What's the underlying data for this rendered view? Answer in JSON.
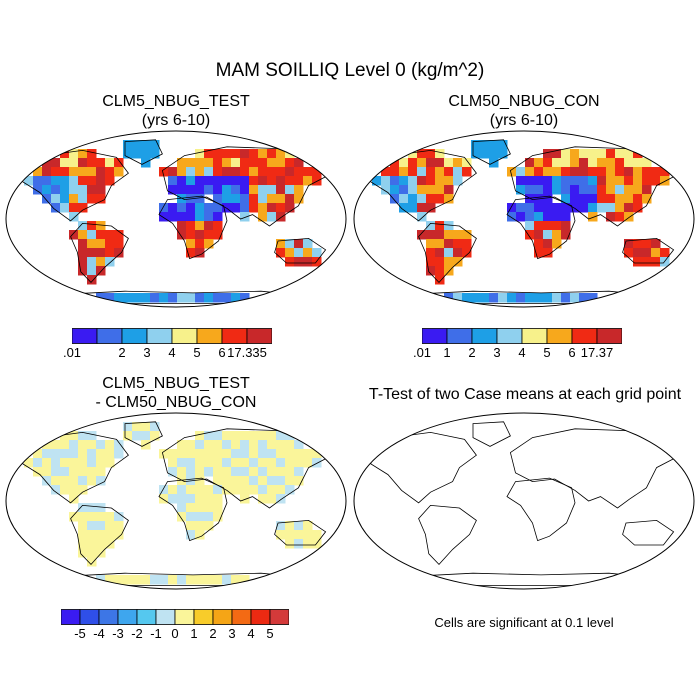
{
  "figure_title": "MAM SOILLIQ Level 0 (kg/m^2)",
  "colors": {
    "abs_palette": [
      "#3a1bf2",
      "#3f6ee8",
      "#1e9fe6",
      "#8fd0ee",
      "#f7f18b",
      "#f7a81c",
      "#f02a14",
      "#c8282a"
    ],
    "diff_palette": [
      "#3a1bf2",
      "#2f4fe8",
      "#3d76e6",
      "#3ea6ee",
      "#55c8ef",
      "#bfe3f2",
      "#faf59a",
      "#f8cc2a",
      "#f5a516",
      "#f36a14",
      "#ec2a12",
      "#d43a3a"
    ]
  },
  "panels": [
    {
      "title_line1": "CLM5_NBUG_TEST",
      "title_line2": "(yrs 6-10)",
      "colorbar_labels": [
        ".01",
        "2",
        "3",
        "4",
        "5",
        "6",
        "17.335"
      ]
    },
    {
      "title_line1": "CLM50_NBUG_CON",
      "title_line2": "(yrs 6-10)",
      "colorbar_labels": [
        ".01",
        "1",
        "2",
        "3",
        "4",
        "5",
        "6",
        "17.37"
      ]
    },
    {
      "title_line1": "CLM5_NBUG_TEST",
      "title_line2": "- CLM50_NBUG_CON",
      "colorbar_labels": [
        "-5",
        "-4",
        "-3",
        "-2",
        "-1",
        "0",
        "1",
        "2",
        "3",
        "4",
        "5"
      ]
    },
    {
      "title_line1": "T-Test of two Case means at each grid point",
      "note": "Cells are significant at 0.1 level"
    }
  ],
  "chart_data": [
    {
      "type": "heatmap",
      "title": "CLM5_NBUG_TEST (yrs 6-10)",
      "projection": "Robinson world map",
      "levels": [
        0.01,
        1,
        2,
        3,
        4,
        5,
        6,
        17.335
      ],
      "colorbar_labels": [
        ".01",
        "2",
        "3",
        "4",
        "5",
        "6",
        "17.335"
      ]
    },
    {
      "type": "heatmap",
      "title": "CLM50_NBUG_CON (yrs 6-10)",
      "projection": "Robinson world map",
      "levels": [
        0.01,
        1,
        2,
        3,
        4,
        5,
        6,
        17.37
      ],
      "colorbar_labels": [
        ".01",
        "1",
        "2",
        "3",
        "4",
        "5",
        "6",
        "17.37"
      ]
    },
    {
      "type": "heatmap",
      "title": "CLM5_NBUG_TEST - CLM50_NBUG_CON",
      "projection": "Robinson world map",
      "levels": [
        -5,
        -4,
        -3,
        -2,
        -1,
        0,
        1,
        2,
        3,
        4,
        5
      ],
      "colorbar_labels": [
        "-5",
        "-4",
        "-3",
        "-2",
        "-1",
        "0",
        "1",
        "2",
        "3",
        "4",
        "5"
      ]
    },
    {
      "type": "heatmap",
      "title": "T-Test of two Case means at each grid point",
      "projection": "Robinson world map",
      "note": "Cells are significant at 0.1 level"
    }
  ]
}
